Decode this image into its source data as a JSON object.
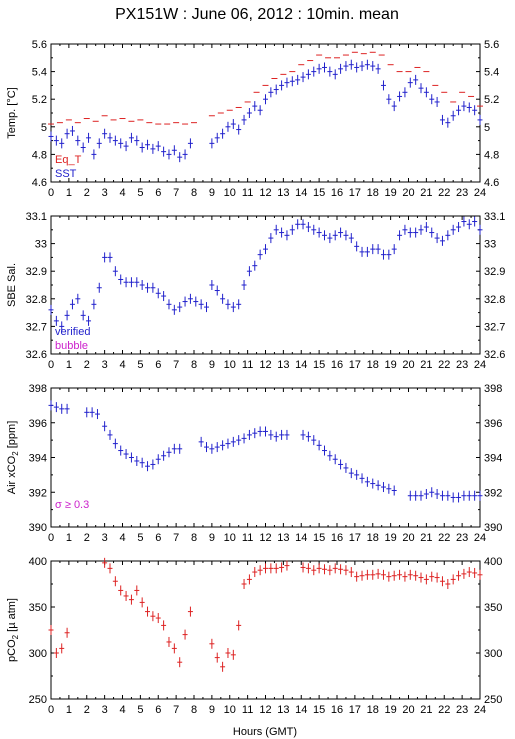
{
  "figure": {
    "title": "PX151W : June 06, 2012 : 10min. mean",
    "xlabel": "Hours (GMT)"
  },
  "chart_data": [
    {
      "type": "scatter",
      "ylabel": "Temp. [°C]",
      "ylim": [
        4.6,
        5.6
      ],
      "yticks": [
        "4.6",
        "4.8",
        "5",
        "5.2",
        "5.4",
        "5.6"
      ],
      "xlim": [
        0,
        24
      ],
      "xticks": [
        "0",
        "1",
        "2",
        "3",
        "4",
        "5",
        "6",
        "7",
        "8",
        "9",
        "10",
        "11",
        "12",
        "13",
        "14",
        "15",
        "16",
        "17",
        "18",
        "19",
        "20",
        "21",
        "22",
        "23",
        "24"
      ],
      "legend": [
        {
          "name": "Eq_T",
          "color": "#dd2222"
        },
        {
          "name": "SST",
          "color": "#2222cc"
        }
      ],
      "series": [
        {
          "name": "Eq_T",
          "color": "#dd2222",
          "marker": "dash",
          "x": [
            0.0,
            0.5,
            1.0,
            1.5,
            2.0,
            2.5,
            3.0,
            3.5,
            4.0,
            4.5,
            5.0,
            5.5,
            6.0,
            6.5,
            7.0,
            7.5,
            8.0,
            9.0,
            9.5,
            10.0,
            10.5,
            11.0,
            11.5,
            12.0,
            12.5,
            13.0,
            13.5,
            14.0,
            14.5,
            15.0,
            15.5,
            16.0,
            16.5,
            17.0,
            17.5,
            18.0,
            18.5,
            19.0,
            19.5,
            20.0,
            20.5,
            21.0,
            21.5,
            22.0,
            22.5,
            23.0,
            23.5,
            24.0
          ],
          "y": [
            5.02,
            5.03,
            5.05,
            5.03,
            5.06,
            5.04,
            5.08,
            5.05,
            5.06,
            5.04,
            5.05,
            5.03,
            5.02,
            5.02,
            5.03,
            5.02,
            5.03,
            5.08,
            5.1,
            5.12,
            5.14,
            5.18,
            5.25,
            5.3,
            5.35,
            5.38,
            5.4,
            5.45,
            5.48,
            5.52,
            5.5,
            5.5,
            5.52,
            5.54,
            5.53,
            5.54,
            5.52,
            5.45,
            5.4,
            5.4,
            5.43,
            5.4,
            5.3,
            5.25,
            5.18,
            5.25,
            5.22,
            5.15
          ]
        },
        {
          "name": "SST",
          "color": "#2222cc",
          "marker": "cross",
          "x": [
            0.0,
            0.3,
            0.6,
            0.9,
            1.2,
            1.5,
            1.8,
            2.1,
            2.4,
            2.7,
            3.0,
            3.3,
            3.6,
            3.9,
            4.2,
            4.5,
            4.8,
            5.1,
            5.4,
            5.7,
            6.0,
            6.3,
            6.6,
            6.9,
            7.2,
            7.5,
            7.8,
            9.0,
            9.3,
            9.6,
            9.9,
            10.2,
            10.5,
            10.8,
            11.1,
            11.4,
            11.7,
            12.0,
            12.3,
            12.6,
            12.9,
            13.2,
            13.5,
            13.8,
            14.1,
            14.4,
            14.7,
            15.0,
            15.3,
            15.6,
            15.9,
            16.2,
            16.5,
            16.8,
            17.1,
            17.4,
            17.7,
            18.0,
            18.3,
            18.6,
            18.9,
            19.2,
            19.5,
            19.8,
            20.1,
            20.4,
            20.7,
            21.0,
            21.3,
            21.6,
            21.9,
            22.2,
            22.5,
            22.8,
            23.1,
            23.4,
            23.7,
            24.0
          ],
          "y": [
            4.93,
            4.9,
            4.88,
            4.95,
            4.97,
            4.9,
            4.85,
            4.92,
            4.8,
            4.88,
            4.95,
            4.92,
            4.9,
            4.88,
            4.86,
            4.92,
            4.9,
            4.85,
            4.87,
            4.84,
            4.86,
            4.82,
            4.8,
            4.83,
            4.78,
            4.8,
            4.88,
            4.88,
            4.92,
            4.95,
            5.0,
            5.02,
            4.98,
            5.05,
            5.1,
            5.15,
            5.12,
            5.2,
            5.25,
            5.27,
            5.3,
            5.32,
            5.33,
            5.34,
            5.36,
            5.38,
            5.4,
            5.42,
            5.43,
            5.4,
            5.38,
            5.42,
            5.44,
            5.45,
            5.43,
            5.44,
            5.45,
            5.44,
            5.42,
            5.3,
            5.2,
            5.15,
            5.22,
            5.25,
            5.32,
            5.34,
            5.28,
            5.25,
            5.2,
            5.18,
            5.05,
            5.03,
            5.08,
            5.12,
            5.15,
            5.14,
            5.12,
            5.05
          ]
        }
      ]
    },
    {
      "type": "scatter",
      "ylabel": "SBE Sal.",
      "ylim": [
        32.6,
        33.1
      ],
      "yticks": [
        "32.6",
        "32.7",
        "32.8",
        "32.9",
        "33",
        "33.1"
      ],
      "xlim": [
        0,
        24
      ],
      "legend": [
        {
          "name": "verified",
          "color": "#2222cc"
        },
        {
          "name": "bubble",
          "color": "#cc22cc"
        }
      ],
      "series": [
        {
          "name": "verified",
          "color": "#2222cc",
          "marker": "cross",
          "x": [
            0.0,
            0.3,
            0.6,
            0.9,
            1.2,
            1.5,
            1.8,
            2.1,
            2.4,
            2.7,
            3.0,
            3.3,
            3.6,
            3.9,
            4.2,
            4.5,
            4.8,
            5.1,
            5.4,
            5.7,
            6.0,
            6.3,
            6.6,
            6.9,
            7.2,
            7.5,
            7.8,
            8.1,
            8.4,
            8.7,
            9.0,
            9.3,
            9.6,
            9.9,
            10.2,
            10.5,
            10.8,
            11.1,
            11.4,
            11.7,
            12.0,
            12.3,
            12.6,
            12.9,
            13.2,
            13.5,
            13.8,
            14.1,
            14.4,
            14.7,
            15.0,
            15.3,
            15.6,
            15.9,
            16.2,
            16.5,
            16.8,
            17.1,
            17.4,
            17.7,
            18.0,
            18.3,
            18.6,
            18.9,
            19.2,
            19.5,
            19.8,
            20.1,
            20.4,
            20.7,
            21.0,
            21.3,
            21.6,
            21.9,
            22.2,
            22.5,
            22.8,
            23.1,
            23.4,
            23.7,
            24.0
          ],
          "y": [
            32.76,
            32.72,
            32.7,
            32.74,
            32.78,
            32.8,
            32.74,
            32.72,
            32.78,
            32.84,
            32.95,
            32.95,
            32.9,
            32.87,
            32.86,
            32.86,
            32.86,
            32.85,
            32.84,
            32.84,
            32.82,
            32.81,
            32.78,
            32.76,
            32.77,
            32.79,
            32.8,
            32.79,
            32.78,
            32.77,
            32.85,
            32.83,
            32.8,
            32.78,
            32.77,
            32.78,
            32.85,
            32.9,
            32.92,
            32.96,
            32.98,
            33.02,
            33.05,
            33.04,
            33.03,
            33.05,
            33.07,
            33.07,
            33.06,
            33.05,
            33.04,
            33.03,
            33.02,
            33.03,
            33.04,
            33.03,
            33.02,
            32.99,
            32.97,
            32.97,
            32.98,
            32.98,
            32.96,
            32.96,
            32.98,
            33.03,
            33.05,
            33.04,
            33.04,
            33.05,
            33.06,
            33.04,
            33.02,
            33.01,
            33.03,
            33.05,
            33.06,
            33.08,
            33.07,
            33.08,
            33.05
          ]
        },
        {
          "name": "bubble",
          "color": "#cc22cc",
          "marker": "cross",
          "x": [],
          "y": []
        }
      ]
    },
    {
      "type": "scatter",
      "ylabel": "Air xCO2 [ppm]",
      "ylabel_parts": [
        "Air xCO",
        "2",
        " [ppm]"
      ],
      "ylim": [
        390,
        398
      ],
      "yticks": [
        "390",
        "392",
        "394",
        "396",
        "398"
      ],
      "xlim": [
        0,
        24
      ],
      "annotation": {
        "text": "σ ≥ 0.3",
        "color": "#cc22cc"
      },
      "series": [
        {
          "name": "Air xCO2",
          "color": "#2222cc",
          "marker": "cross",
          "x": [
            0.0,
            0.3,
            0.6,
            0.9,
            2.0,
            2.3,
            2.6,
            3.0,
            3.3,
            3.6,
            3.9,
            4.2,
            4.5,
            4.8,
            5.1,
            5.4,
            5.7,
            6.0,
            6.3,
            6.6,
            6.9,
            7.2,
            8.4,
            8.7,
            9.0,
            9.3,
            9.6,
            9.9,
            10.2,
            10.5,
            10.8,
            11.1,
            11.4,
            11.7,
            12.0,
            12.3,
            12.6,
            12.9,
            13.2,
            14.1,
            14.4,
            14.7,
            15.0,
            15.3,
            15.6,
            15.9,
            16.2,
            16.5,
            16.8,
            17.1,
            17.4,
            17.7,
            18.0,
            18.3,
            18.6,
            18.9,
            19.2,
            20.1,
            20.4,
            20.7,
            21.0,
            21.3,
            21.6,
            21.9,
            22.2,
            22.5,
            22.8,
            23.1,
            23.4,
            23.7,
            24.0
          ],
          "y": [
            397.0,
            396.9,
            396.8,
            396.8,
            396.6,
            396.6,
            396.5,
            395.8,
            395.3,
            394.8,
            394.4,
            394.2,
            394.0,
            393.8,
            393.7,
            393.5,
            393.6,
            393.9,
            394.1,
            394.3,
            394.5,
            394.5,
            394.9,
            394.6,
            394.5,
            394.6,
            394.7,
            394.8,
            394.9,
            395.0,
            395.1,
            395.3,
            395.4,
            395.5,
            395.5,
            395.3,
            395.2,
            395.3,
            395.3,
            395.3,
            395.2,
            395.0,
            394.7,
            394.4,
            394.1,
            393.9,
            393.6,
            393.4,
            393.1,
            393.0,
            392.8,
            392.6,
            392.5,
            392.4,
            392.3,
            392.2,
            392.1,
            391.8,
            391.8,
            391.8,
            391.9,
            392.0,
            391.9,
            391.8,
            391.8,
            391.7,
            391.7,
            391.8,
            391.8,
            391.8,
            391.8
          ]
        }
      ]
    },
    {
      "type": "scatter",
      "ylabel": "pCO2 [µ atm]",
      "ylabel_parts": [
        "pCO",
        "2",
        " [µ atm]"
      ],
      "ylim": [
        250,
        400
      ],
      "yticks": [
        "250",
        "300",
        "350",
        "400"
      ],
      "xlim": [
        0,
        24
      ],
      "series": [
        {
          "name": "pCO2",
          "color": "#dd2222",
          "marker": "cross",
          "x": [
            0.0,
            0.3,
            0.6,
            0.9,
            3.0,
            3.3,
            3.6,
            3.9,
            4.2,
            4.5,
            4.8,
            5.1,
            5.4,
            5.7,
            6.0,
            6.3,
            6.6,
            6.9,
            7.2,
            7.5,
            7.8,
            9.0,
            9.3,
            9.6,
            9.9,
            10.2,
            10.5,
            10.8,
            11.1,
            11.4,
            11.7,
            12.0,
            12.3,
            12.6,
            12.9,
            13.2,
            14.1,
            14.4,
            14.7,
            15.0,
            15.3,
            15.6,
            15.9,
            16.2,
            16.5,
            16.8,
            17.1,
            17.4,
            17.7,
            18.0,
            18.3,
            18.6,
            18.9,
            19.2,
            19.5,
            19.8,
            20.1,
            20.4,
            20.7,
            21.0,
            21.3,
            21.6,
            21.9,
            22.2,
            22.5,
            22.8,
            23.1,
            23.4,
            23.7,
            24.0
          ],
          "y": [
            325,
            300,
            305,
            322,
            398,
            392,
            378,
            368,
            362,
            358,
            368,
            355,
            345,
            340,
            338,
            330,
            312,
            305,
            290,
            320,
            345,
            310,
            295,
            285,
            300,
            298,
            330,
            375,
            380,
            388,
            390,
            392,
            392,
            392,
            393,
            395,
            393,
            392,
            390,
            392,
            391,
            390,
            392,
            391,
            390,
            388,
            383,
            384,
            385,
            385,
            386,
            385,
            383,
            384,
            385,
            383,
            385,
            384,
            382,
            380,
            383,
            382,
            378,
            375,
            380,
            384,
            386,
            388,
            387,
            385
          ]
        }
      ]
    }
  ]
}
